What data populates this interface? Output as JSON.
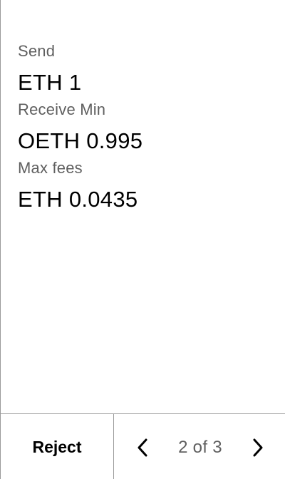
{
  "fields": [
    {
      "label": "Send",
      "value": "ETH 1"
    },
    {
      "label": "Receive Min",
      "value": "OETH 0.995"
    },
    {
      "label": "Max fees",
      "value": "ETH 0.0435"
    }
  ],
  "footer": {
    "reject_label": "Reject",
    "page_indicator": "2 of 3",
    "prev_icon": "chevron-left-icon",
    "next_icon": "chevron-right-icon"
  }
}
